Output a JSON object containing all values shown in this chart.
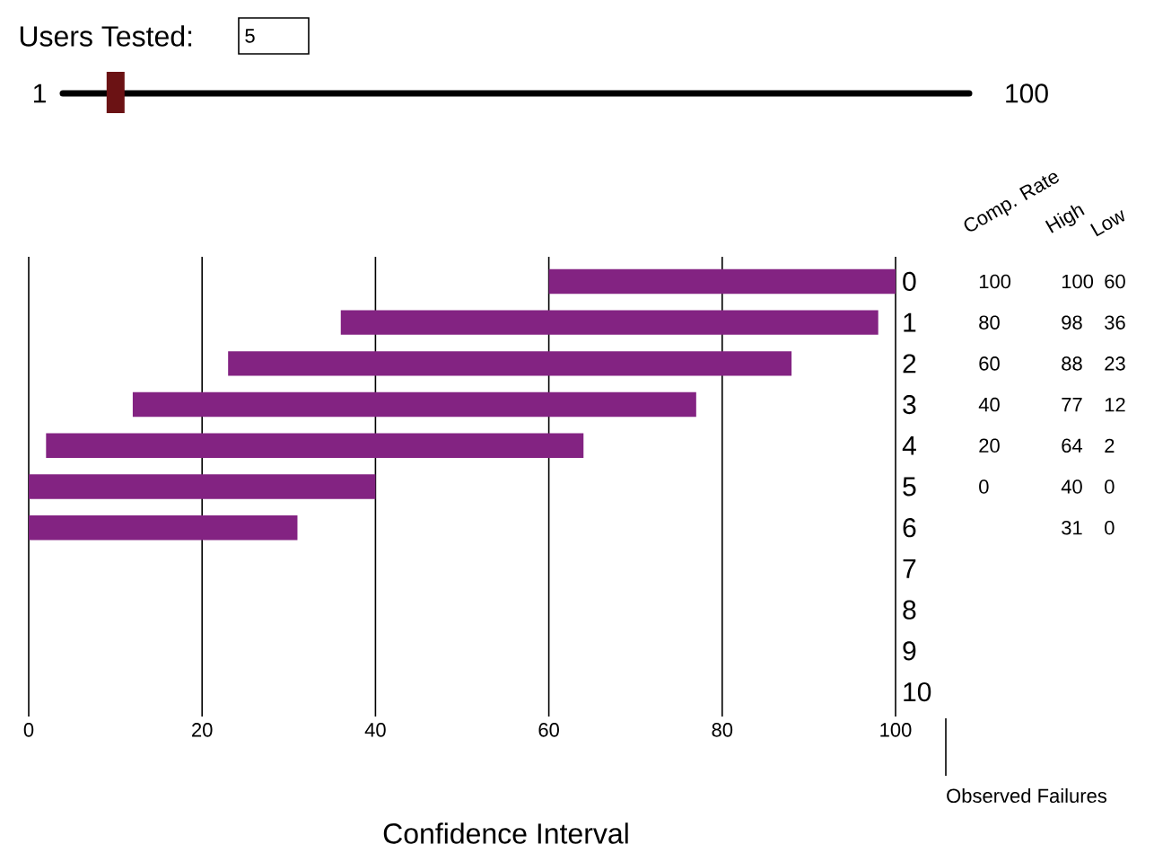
{
  "chart_data": {
    "type": "bar",
    "orientation": "horizontal",
    "title": "Users Tested:",
    "xlabel": "Confidence Interval",
    "ylabel": "Observed Failures",
    "categories": [
      "0",
      "1",
      "2",
      "3",
      "4",
      "5",
      "6",
      "7",
      "8",
      "9",
      "10"
    ],
    "base": [
      60,
      36,
      23,
      12,
      2,
      0,
      0,
      null,
      null,
      null,
      null
    ],
    "values": [
      40,
      62,
      65,
      65,
      62,
      40,
      31,
      null,
      null,
      null,
      null
    ],
    "color": "#832382",
    "xlim": [
      0,
      100
    ],
    "xticks": [
      0,
      20,
      40,
      60,
      80,
      100
    ],
    "grid": "x",
    "annotations": [
      "5",
      "1",
      "100",
      "Comp. Rate",
      "High",
      "Low",
      "100",
      "100",
      "60",
      "80",
      "98",
      "36",
      "60",
      "88",
      "23",
      "40",
      "77",
      "12",
      "20",
      "64",
      "2",
      "0",
      "40",
      "0",
      "31",
      "0"
    ]
  }
}
